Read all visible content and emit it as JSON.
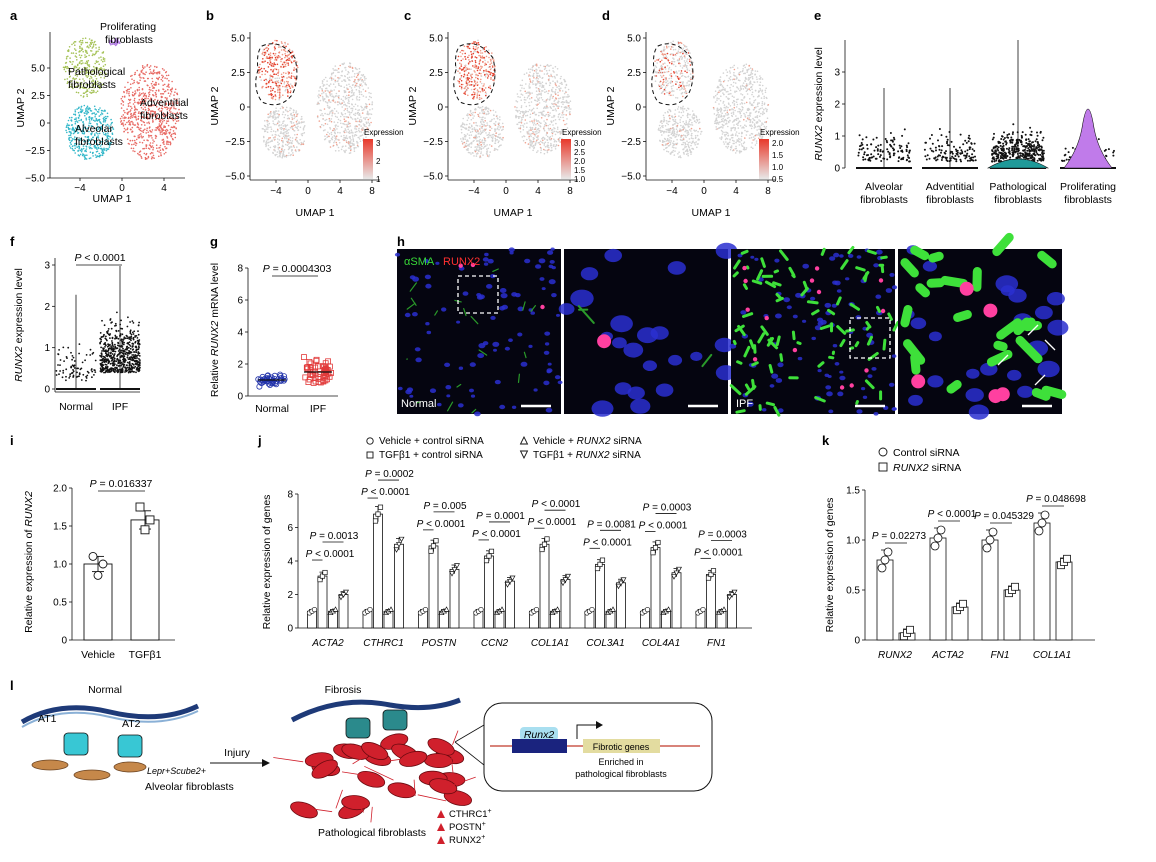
{
  "panels": {
    "a": {
      "letter": "a",
      "clusters": [
        "Proliferating fibroblasts",
        "Pathological fibroblasts",
        "Adventitial fibroblasts",
        "Alveolar fibroblasts"
      ],
      "xlabel": "UMAP 1",
      "ylabel": "UMAP 2",
      "yticks": [
        "5.0",
        "2.5",
        "0",
        "−2.5",
        "−5.0"
      ],
      "xticks": [
        "−4",
        "0",
        "4"
      ]
    },
    "b": {
      "letter": "b",
      "xlabel": "UMAP 1",
      "ylabel": "UMAP 2",
      "legend_title": "Expression",
      "legend_ticks": [
        "3",
        "2",
        "1"
      ],
      "yticks": [
        "5.0",
        "2.5",
        "0",
        "−2.5",
        "−5.0"
      ],
      "xticks": [
        "−4",
        "0",
        "4",
        "8"
      ]
    },
    "c": {
      "letter": "c",
      "xlabel": "UMAP 1",
      "ylabel": "UMAP 2",
      "legend_title": "Expression",
      "legend_ticks": [
        "3.0",
        "2.5",
        "2.0",
        "1.5",
        "1.0"
      ],
      "yticks": [
        "5.0",
        "2.5",
        "0",
        "−2.5",
        "−5.0"
      ],
      "xticks": [
        "−4",
        "0",
        "4",
        "8"
      ]
    },
    "d": {
      "letter": "d",
      "xlabel": "UMAP 1",
      "ylabel": "UMAP 2",
      "legend_title": "Expression",
      "legend_ticks": [
        "2.0",
        "1.5",
        "1.0",
        "0.5"
      ],
      "yticks": [
        "5.0",
        "2.5",
        "0",
        "−2.5",
        "−5.0"
      ],
      "xticks": [
        "−4",
        "0",
        "4",
        "8"
      ]
    },
    "e": {
      "letter": "e",
      "ylabel_gene": "RUNX2",
      "ylabel_rest": " expression level",
      "yticks": [
        "3",
        "2",
        "1",
        "0"
      ],
      "groups": [
        "Alveolar fibroblasts",
        "Adventitial fibroblasts",
        "Pathological fibroblasts",
        "Proliferating fibroblasts"
      ]
    },
    "f": {
      "letter": "f",
      "ylabel_gene": "RUNX2",
      "ylabel_rest": " expression level",
      "pvalue": "P < 0.0001",
      "yticks": [
        "3",
        "2",
        "1",
        "0"
      ],
      "groups": [
        "Normal",
        "IPF"
      ]
    },
    "g": {
      "letter": "g",
      "ylabel_pre": "Relative ",
      "ylabel_gene": "RUNX2",
      "ylabel_rest": " mRNA level",
      "pvalue": "P = 0.0004303",
      "yticks": [
        "8",
        "6",
        "4",
        "2",
        "0"
      ],
      "groups": [
        "Normal",
        "IPF"
      ]
    },
    "h": {
      "letter": "h",
      "stain_green": "αSMA",
      "stain_red": "RUNX2",
      "label_normal": "Normal",
      "label_ipf": "IPF"
    },
    "i": {
      "letter": "i",
      "ylabel_pre": "Relative expression of ",
      "ylabel_gene": "RUNX2",
      "pvalue": "P = 0.016337",
      "yticks": [
        "2.0",
        "1.5",
        "1.0",
        "0.5",
        "0"
      ],
      "groups": [
        "Vehicle",
        "TGFβ1"
      ]
    },
    "j": {
      "letter": "j",
      "ylabel": "Relative expression of genes",
      "yticks": [
        "8",
        "6",
        "4",
        "2",
        "0"
      ],
      "legend": [
        "Vehicle + control siRNA",
        "TGFβ1 + control siRNA",
        "Vehicle + RUNX2 siRNA",
        "TGFβ1 + RUNX2 siRNA"
      ],
      "genes": [
        "ACTA2",
        "CTHRC1",
        "POSTN",
        "CCN2",
        "COL1A1",
        "COL3A1",
        "COL4A1",
        "FN1"
      ],
      "pvalues_top": [
        "P = 0.0013",
        "P = 0.0002",
        "P = 0.005",
        "P = 0.0001",
        "P < 0.0001",
        "P = 0.0081",
        "P = 0.0003",
        "P = 0.0003"
      ],
      "pvalues_bottom": [
        "P < 0.0001",
        "P < 0.0001",
        "P < 0.0001",
        "P < 0.0001",
        "P < 0.0001",
        "P < 0.0001",
        "P < 0.0001",
        "P < 0.0001"
      ]
    },
    "k": {
      "letter": "k",
      "ylabel": "Relative expression of genes",
      "yticks": [
        "1.5",
        "1.0",
        "0.5",
        "0"
      ],
      "legend": [
        "Control siRNA",
        "RUNX2 siRNA"
      ],
      "genes": [
        "RUNX2",
        "ACTA2",
        "FN1",
        "COL1A1"
      ],
      "pvalues": [
        "P = 0.02273",
        "P < 0.0001",
        "P = 0.045329",
        "P = 0.048698"
      ]
    },
    "l": {
      "letter": "l",
      "normal_title": "Normal",
      "fibrosis_title": "Fibrosis",
      "at1": "AT1",
      "at2": "AT2",
      "injury": "Injury",
      "alveolar_line1": "Lepr+Scube2+",
      "alveolar_line2": "Alveolar fibroblasts",
      "pathological": "Pathological fibroblasts",
      "markers": [
        "CTHRC1+",
        "POSTN+",
        "RUNX2+"
      ],
      "gene_box": "Runx2",
      "fibrotic": "Fibrotic genes",
      "enriched1": "Enriched in",
      "enriched2": "pathological fibroblasts"
    }
  },
  "chart_data": [
    {
      "type": "bar",
      "panel": "i",
      "categories": [
        "Vehicle",
        "TGFβ1"
      ],
      "values": [
        1.0,
        1.58
      ],
      "errors": [
        0.1,
        0.12
      ],
      "ylim": [
        0,
        2.0
      ],
      "points": [
        [
          1.1,
          1.0,
          0.85
        ],
        [
          1.75,
          1.58,
          1.45
        ]
      ],
      "pvalue": "P = 0.016337"
    },
    {
      "type": "bar",
      "panel": "j",
      "categories": [
        "ACTA2",
        "CTHRC1",
        "POSTN",
        "CCN2",
        "COL1A1",
        "COL3A1",
        "COL4A1",
        "FN1"
      ],
      "ylim": [
        0,
        8
      ],
      "series": [
        {
          "name": "Vehicle + control siRNA",
          "values": [
            1.0,
            1.0,
            1.0,
            1.0,
            1.0,
            1.0,
            1.0,
            1.0
          ]
        },
        {
          "name": "TGFβ1 + control siRNA",
          "values": [
            3.1,
            6.8,
            4.9,
            4.3,
            5.0,
            3.8,
            4.8,
            3.2
          ]
        },
        {
          "name": "Vehicle + RUNX2 siRNA",
          "values": [
            1.0,
            1.0,
            1.0,
            1.0,
            1.0,
            1.0,
            1.0,
            1.0
          ]
        },
        {
          "name": "TGFβ1 + RUNX2 siRNA",
          "values": [
            2.0,
            5.0,
            3.5,
            2.8,
            2.9,
            2.7,
            3.3,
            2.0
          ]
        }
      ]
    },
    {
      "type": "bar",
      "panel": "k",
      "categories": [
        "RUNX2",
        "ACTA2",
        "FN1",
        "COL1A1"
      ],
      "ylim": [
        0,
        1.5
      ],
      "series": [
        {
          "name": "Control siRNA",
          "values": [
            0.8,
            1.02,
            1.0,
            1.17
          ]
        },
        {
          "name": "RUNX2 siRNA",
          "values": [
            0.07,
            0.33,
            0.5,
            0.78
          ]
        }
      ]
    },
    {
      "type": "scatter",
      "panel": "g",
      "categories": [
        "Normal",
        "IPF"
      ],
      "ylim": [
        0,
        8
      ],
      "values": [
        1.0,
        1.5
      ]
    }
  ]
}
